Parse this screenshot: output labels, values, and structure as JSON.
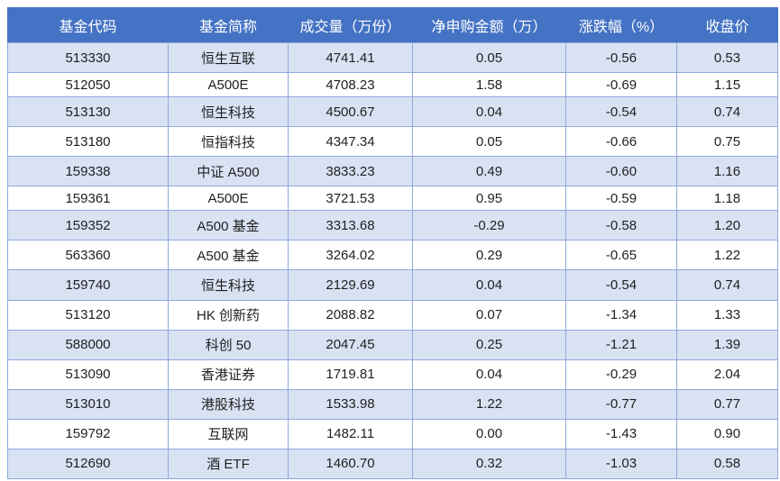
{
  "colors": {
    "header_bg": "#4472C4",
    "header_text": "#FFFFFF",
    "row_alt_bg": "#D9E2F3",
    "row_bg": "#FFFFFF",
    "border": "#8FA8DC",
    "text": "#1F1F1F"
  },
  "chart_data": {
    "type": "table",
    "columns": [
      "基金代码",
      "基金简称",
      "成交量（万份）",
      "净申购金额（万）",
      "涨跌幅（%）",
      "收盘价"
    ],
    "rows": [
      [
        "513330",
        "恒生互联",
        "4741.41",
        "0.05",
        "-0.56",
        "0.53"
      ],
      [
        "512050",
        "A500E",
        "4708.23",
        "1.58",
        "-0.69",
        "1.15"
      ],
      [
        "513130",
        "恒生科技",
        "4500.67",
        "0.04",
        "-0.54",
        "0.74"
      ],
      [
        "513180",
        "恒指科技",
        "4347.34",
        "0.05",
        "-0.66",
        "0.75"
      ],
      [
        "159338",
        "中证 A500",
        "3833.23",
        "0.49",
        "-0.60",
        "1.16"
      ],
      [
        "159361",
        "A500E",
        "3721.53",
        "0.95",
        "-0.59",
        "1.18"
      ],
      [
        "159352",
        "A500 基金",
        "3313.68",
        "-0.29",
        "-0.58",
        "1.20"
      ],
      [
        "563360",
        "A500 基金",
        "3264.02",
        "0.29",
        "-0.65",
        "1.22"
      ],
      [
        "159740",
        "恒生科技",
        "2129.69",
        "0.04",
        "-0.54",
        "0.74"
      ],
      [
        "513120",
        "HK 创新药",
        "2088.82",
        "0.07",
        "-1.34",
        "1.33"
      ],
      [
        "588000",
        "科创 50",
        "2047.45",
        "0.25",
        "-1.21",
        "1.39"
      ],
      [
        "513090",
        "香港证券",
        "1719.81",
        "0.04",
        "-0.29",
        "2.04"
      ],
      [
        "513010",
        "港股科技",
        "1533.98",
        "1.22",
        "-0.77",
        "0.77"
      ],
      [
        "159792",
        "互联网",
        "1482.11",
        "0.00",
        "-1.43",
        "0.90"
      ],
      [
        "512690",
        "酒 ETF",
        "1460.70",
        "0.32",
        "-1.03",
        "0.58"
      ]
    ]
  }
}
